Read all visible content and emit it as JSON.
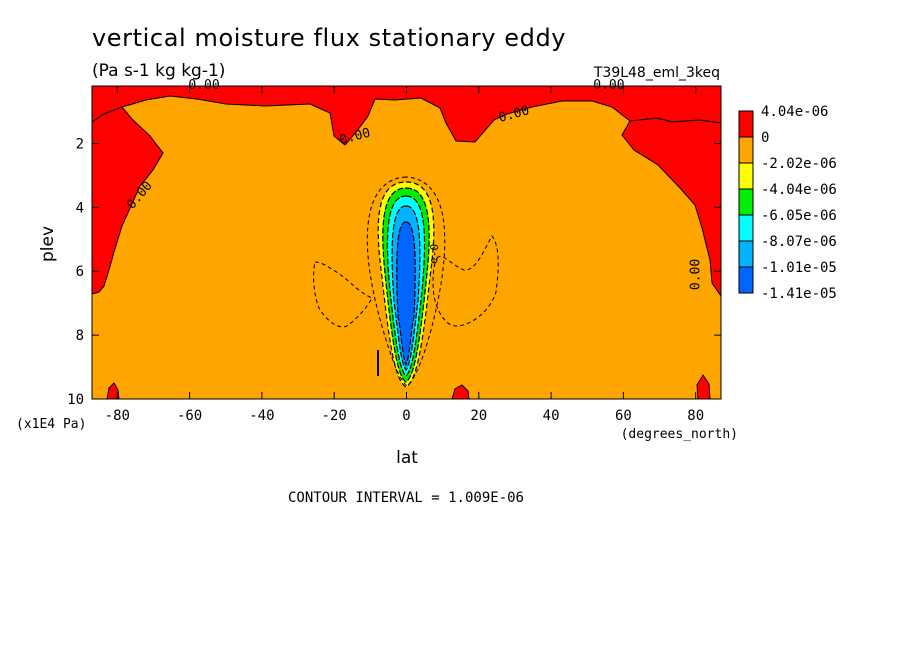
{
  "chart_data": {
    "type": "heatmap",
    "title": "vertical moisture flux stationary eddy",
    "subtitle": "(Pa s-1 kg kg-1)",
    "run_label": "T39L48_eml_3keq",
    "xlabel": "lat",
    "x_units": "(degrees_north)",
    "ylabel": "plev",
    "y_units": "(x1E4 Pa)",
    "xlim": [
      -87,
      87
    ],
    "ylim": [
      10,
      0.2
    ],
    "x_ticks": [
      -80,
      -60,
      -40,
      -20,
      0,
      20,
      40,
      60,
      80
    ],
    "y_ticks": [
      2,
      4,
      6,
      8,
      10
    ],
    "footer": "CONTOUR INTERVAL = 1.009E-06",
    "contour_labels": [
      {
        "text": "0.00",
        "lat": -56,
        "plev": 0.3
      },
      {
        "text": "0.00",
        "lat": -14,
        "plev": 1.9
      },
      {
        "text": "0.00",
        "lat": 30,
        "plev": 1.2
      },
      {
        "text": "0.00",
        "lat": 56,
        "plev": 0.3
      },
      {
        "text": "0.00",
        "lat": -73,
        "plev": 3.7
      },
      {
        "text": "0.00",
        "lat": 81,
        "plev": 6.1
      }
    ],
    "legend": {
      "placement": "right",
      "levels": [
        {
          "label": "4.04e-06",
          "color": "#ff0000"
        },
        {
          "label": "0",
          "color": "#ffa500"
        },
        {
          "label": "-2.02e-06",
          "color": "#ffff00"
        },
        {
          "label": "-4.04e-06",
          "color": "#00ee00"
        },
        {
          "label": "-6.05e-06",
          "color": "#00ffff"
        },
        {
          "label": "-8.07e-06",
          "color": "#00b3ff"
        },
        {
          "label": "-1.01e-05",
          "color": "#0066ff"
        },
        {
          "label": "-1.41e-05",
          "color": ""
        }
      ]
    },
    "regions": {
      "background": {
        "color": "#ffa500"
      },
      "positive": {
        "color": "#ff0000"
      },
      "negative_core": [
        {
          "level": -2.02e-06,
          "color": "#ffff00"
        },
        {
          "level": -4.04e-06,
          "color": "#00ee00"
        },
        {
          "level": -6.05e-06,
          "color": "#00ffff"
        },
        {
          "level": -8.07e-06,
          "color": "#00b3ff"
        },
        {
          "level": -1.01e-05,
          "color": "#0066ff"
        }
      ]
    }
  }
}
